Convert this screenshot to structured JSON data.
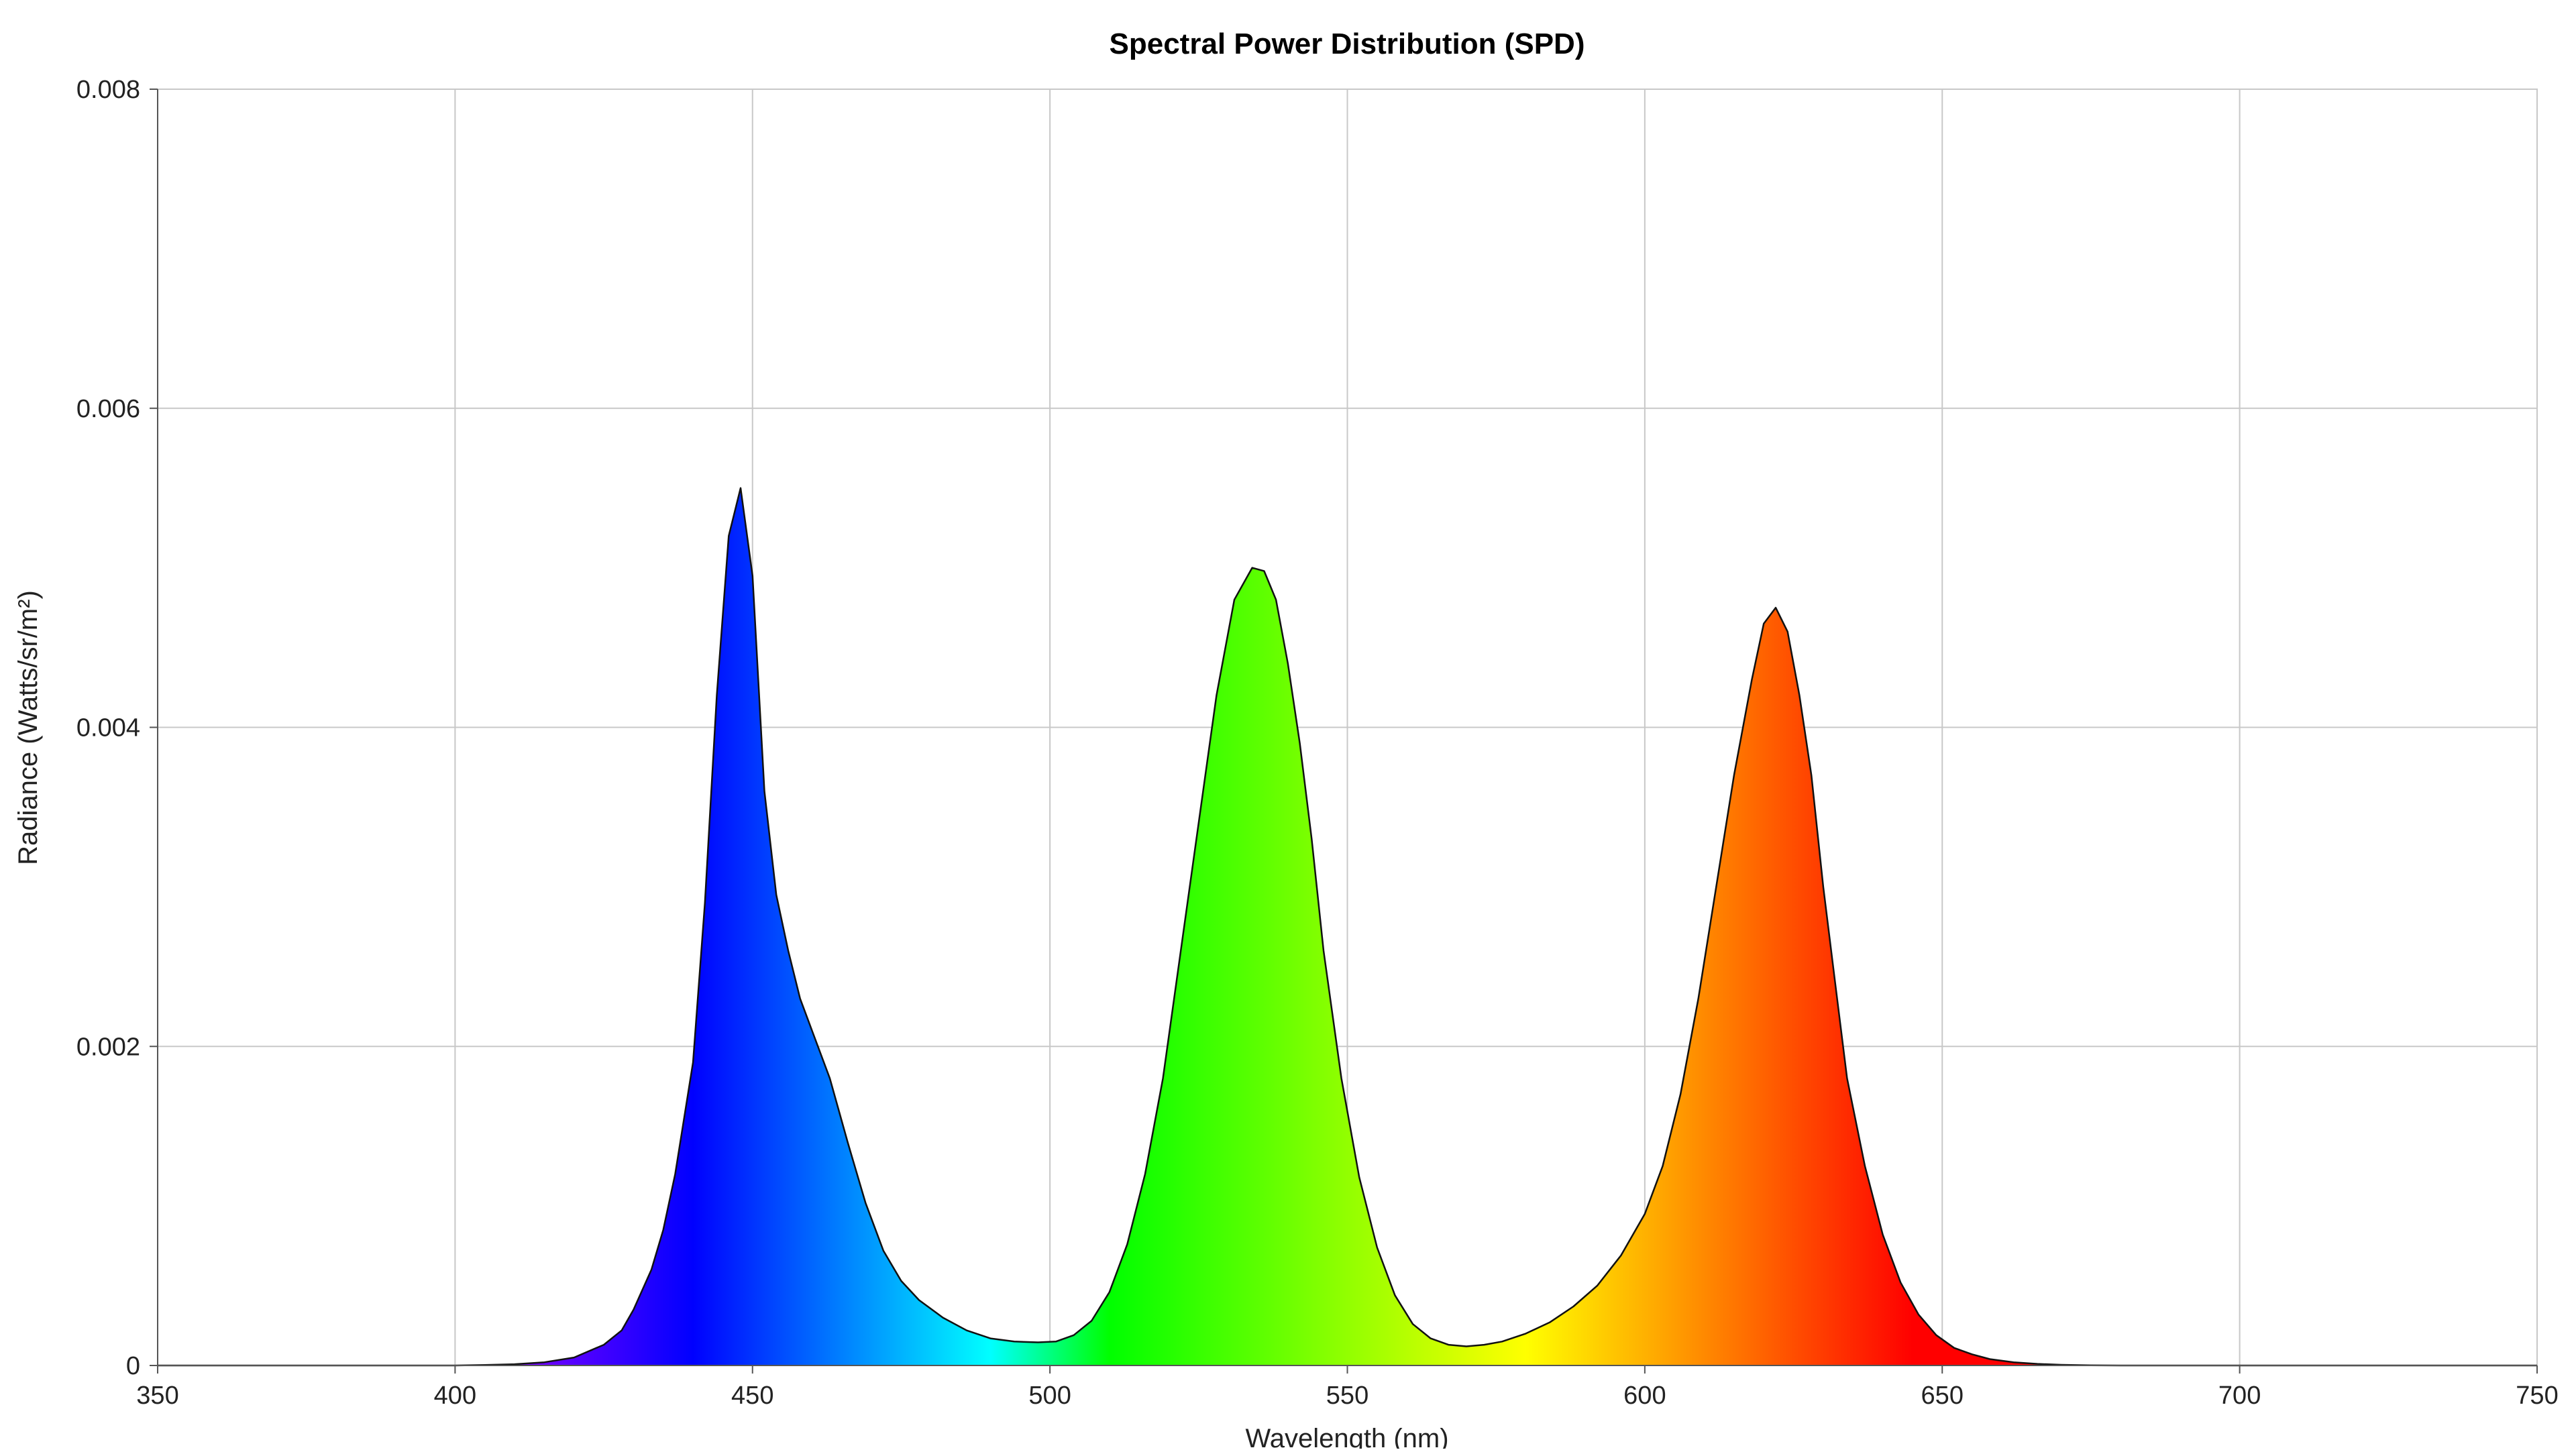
{
  "chart_data": {
    "type": "area",
    "title": "Spectral Power Distribution (SPD)",
    "xlabel": "Wavelength (nm)",
    "ylabel": "Radiance (Watts/sr/m²)",
    "xlim": [
      350,
      750
    ],
    "ylim": [
      0,
      0.008
    ],
    "x_ticks": [
      350,
      400,
      450,
      500,
      550,
      600,
      650,
      700,
      750
    ],
    "y_ticks": [
      0,
      0.002,
      0.004,
      0.006,
      0.008
    ],
    "x_tick_labels": [
      "350",
      "400",
      "450",
      "500",
      "550",
      "600",
      "650",
      "700",
      "750"
    ],
    "y_tick_labels": [
      "0",
      "0.002",
      "0.004",
      "0.006",
      "0.008"
    ],
    "grid": true,
    "fill": "visible-spectrum gradient by wavelength",
    "series": [
      {
        "x": [
          350,
          400,
          405,
          410,
          415,
          420,
          425,
          428,
          430,
          433,
          435,
          437,
          440,
          442,
          444,
          446,
          448,
          450,
          452,
          454,
          456,
          458,
          460,
          463,
          466,
          469,
          472,
          475,
          478,
          482,
          486,
          490,
          494,
          498,
          501,
          504,
          507,
          510,
          513,
          516,
          519,
          522,
          525,
          528,
          531,
          534,
          536,
          538,
          540,
          542,
          544,
          546,
          549,
          552,
          555,
          558,
          561,
          564,
          567,
          570,
          573,
          576,
          580,
          584,
          588,
          592,
          596,
          600,
          603,
          606,
          609,
          612,
          615,
          618,
          620,
          622,
          624,
          626,
          628,
          630,
          632,
          634,
          637,
          640,
          643,
          646,
          649,
          652,
          655,
          658,
          662,
          666,
          670,
          675,
          680,
          690,
          700,
          750
        ],
        "values": [
          0,
          0,
          3e-06,
          8e-06,
          2e-05,
          5e-05,
          0.00013,
          0.00022,
          0.00035,
          0.0006,
          0.00085,
          0.0012,
          0.0019,
          0.0029,
          0.0042,
          0.0052,
          0.0055,
          0.00495,
          0.0036,
          0.00295,
          0.0026,
          0.0023,
          0.0021,
          0.0018,
          0.0014,
          0.00102,
          0.00072,
          0.00053,
          0.00041,
          0.0003,
          0.00022,
          0.00017,
          0.00015,
          0.000145,
          0.00015,
          0.00019,
          0.00028,
          0.00046,
          0.00076,
          0.0012,
          0.0018,
          0.0026,
          0.0034,
          0.0042,
          0.0048,
          0.005,
          0.00498,
          0.0048,
          0.0044,
          0.0039,
          0.0033,
          0.0026,
          0.0018,
          0.00118,
          0.00074,
          0.00044,
          0.00026,
          0.00017,
          0.00013,
          0.00012,
          0.00013,
          0.00015,
          0.0002,
          0.00027,
          0.00037,
          0.0005,
          0.00069,
          0.00095,
          0.00125,
          0.0017,
          0.0023,
          0.003,
          0.0037,
          0.0043,
          0.00465,
          0.00475,
          0.0046,
          0.0042,
          0.0037,
          0.003,
          0.0024,
          0.0018,
          0.00125,
          0.00082,
          0.00052,
          0.00032,
          0.00019,
          0.00011,
          7e-05,
          4e-05,
          2e-05,
          1e-05,
          4e-06,
          1e-06,
          0,
          0,
          0,
          0
        ]
      }
    ]
  }
}
